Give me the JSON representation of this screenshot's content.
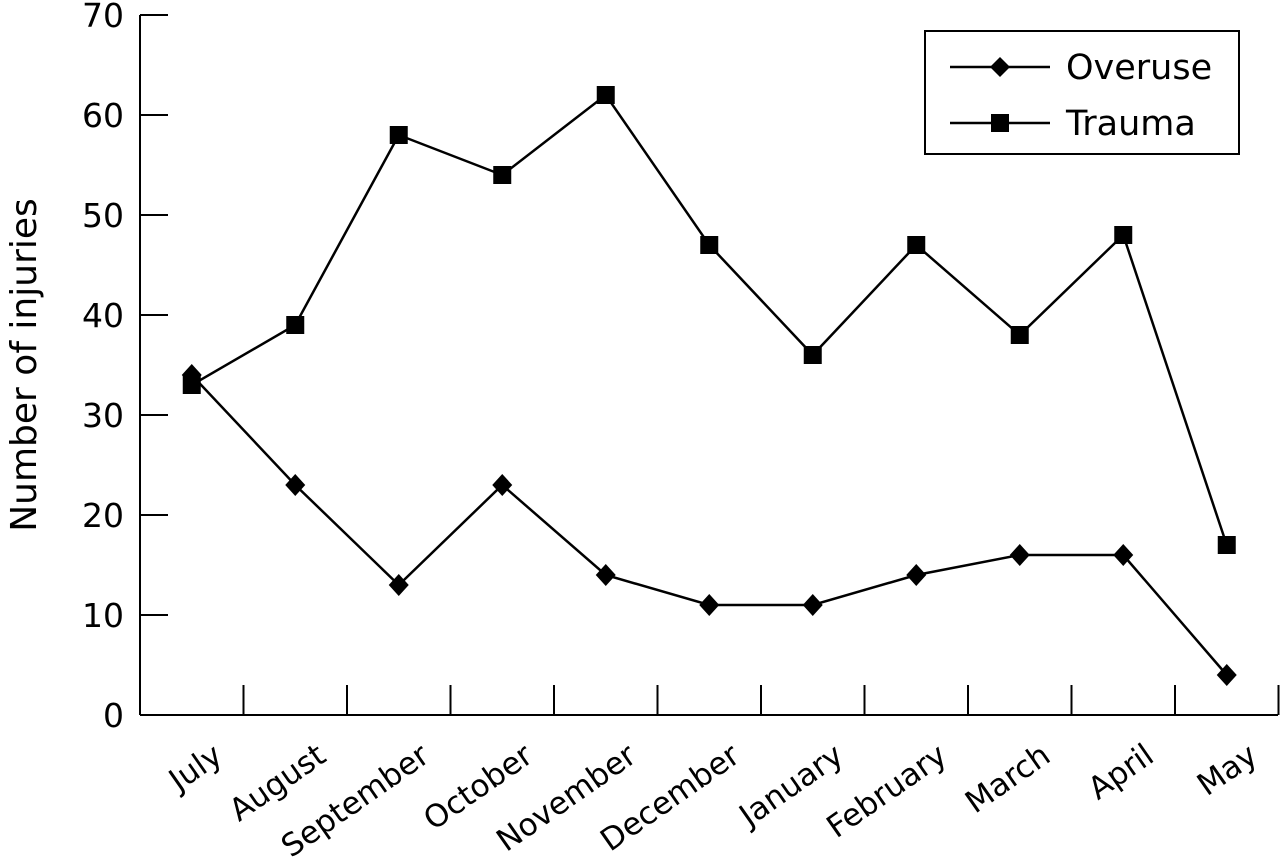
{
  "chart_data": {
    "type": "line",
    "title": "",
    "xlabel": "",
    "ylabel": "Number of injuries",
    "ylim": [
      0,
      70
    ],
    "yticks": [
      "0",
      "10",
      "20",
      "30",
      "40",
      "50",
      "60",
      "70"
    ],
    "categories": [
      "July",
      "August",
      "September",
      "October",
      "November",
      "December",
      "January",
      "February",
      "March",
      "April",
      "May"
    ],
    "series": [
      {
        "name": "Overuse",
        "marker": "diamond",
        "values": [
          34,
          23,
          13,
          23,
          14,
          11,
          11,
          14,
          16,
          16,
          4
        ]
      },
      {
        "name": "Trauma",
        "marker": "square",
        "values": [
          33,
          39,
          58,
          54,
          62,
          47,
          36,
          47,
          38,
          48,
          17
        ]
      }
    ],
    "legend": "top-right",
    "grid": false,
    "colors": {
      "line": "#000000",
      "background": "#ffffff"
    }
  }
}
